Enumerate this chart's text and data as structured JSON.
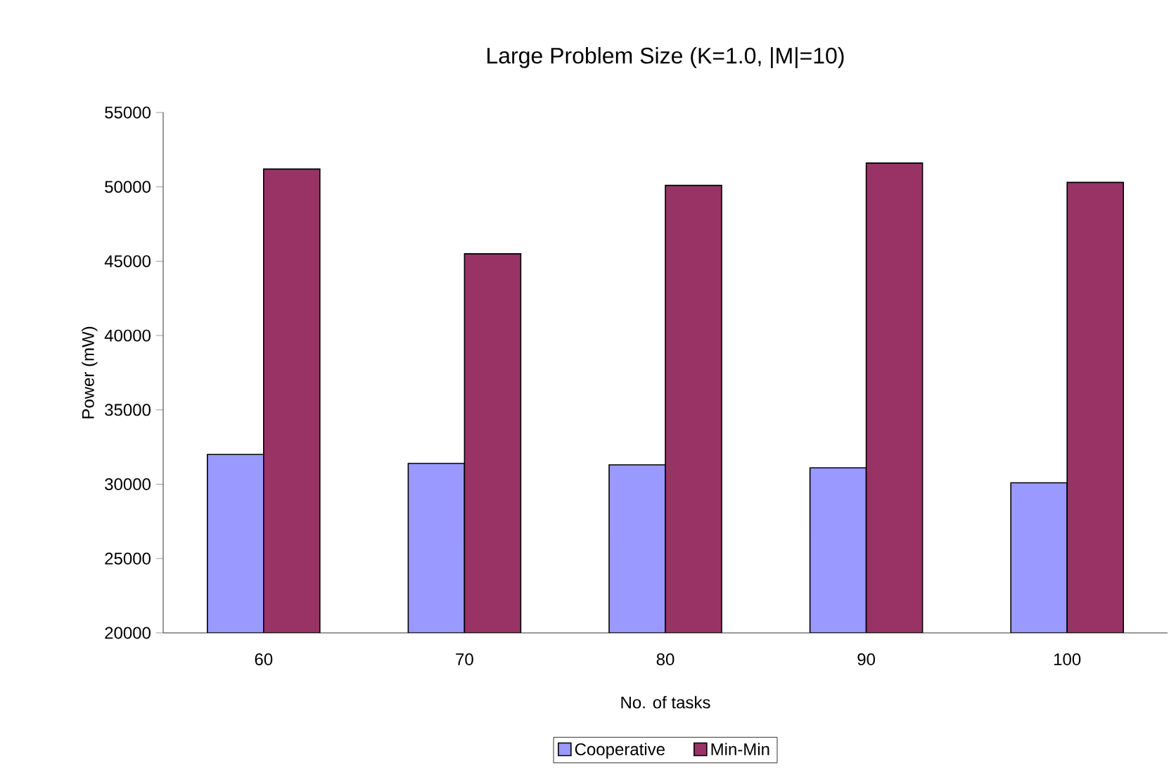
{
  "chart_data": {
    "type": "bar",
    "title": "Large Problem Size (K=1.0, |M|=10)",
    "xlabel": "No. of tasks",
    "ylabel": "Power (mW)",
    "categories": [
      "60",
      "70",
      "80",
      "90",
      "100"
    ],
    "series": [
      {
        "name": "Cooperative",
        "color": "#9999ff",
        "values": [
          32000,
          31400,
          31300,
          31100,
          30100
        ]
      },
      {
        "name": "Min-Min",
        "color": "#993366",
        "values": [
          51200,
          45500,
          50100,
          51600,
          50300
        ]
      }
    ],
    "ylim": [
      20000,
      55000
    ],
    "yticks": [
      20000,
      25000,
      30000,
      35000,
      40000,
      45000,
      50000,
      55000
    ],
    "grid": false,
    "legend": "bottom"
  }
}
